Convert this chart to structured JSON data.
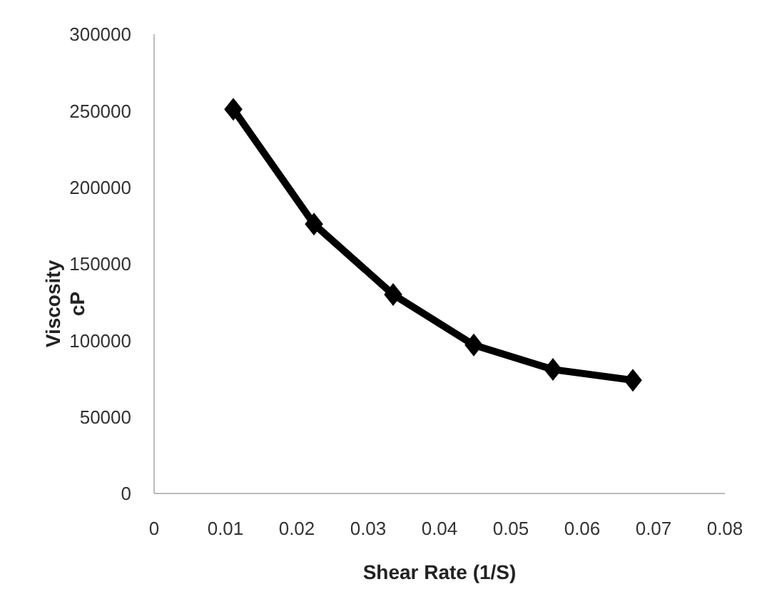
{
  "chart_data": {
    "type": "line",
    "xlabel": "Shear Rate (1/S)",
    "ylabel": "Viscosity\ncP",
    "x": [
      0.0111,
      0.0224,
      0.0335,
      0.0448,
      0.0559,
      0.0671
    ],
    "series": [
      {
        "color": "#000000",
        "values": [
          251000,
          176000,
          130000,
          97000,
          81000,
          74000
        ]
      }
    ],
    "xlim": [
      0,
      0.08
    ],
    "xticks": [
      0,
      0.01,
      0.02,
      0.03,
      0.04,
      0.05,
      0.06,
      0.07,
      0.08
    ],
    "ylim": [
      0,
      300000
    ],
    "yticks": [
      0,
      50000,
      100000,
      150000,
      200000,
      250000,
      300000
    ],
    "grid": false,
    "legend": false,
    "marker": "diamond",
    "line_style": "solid"
  }
}
